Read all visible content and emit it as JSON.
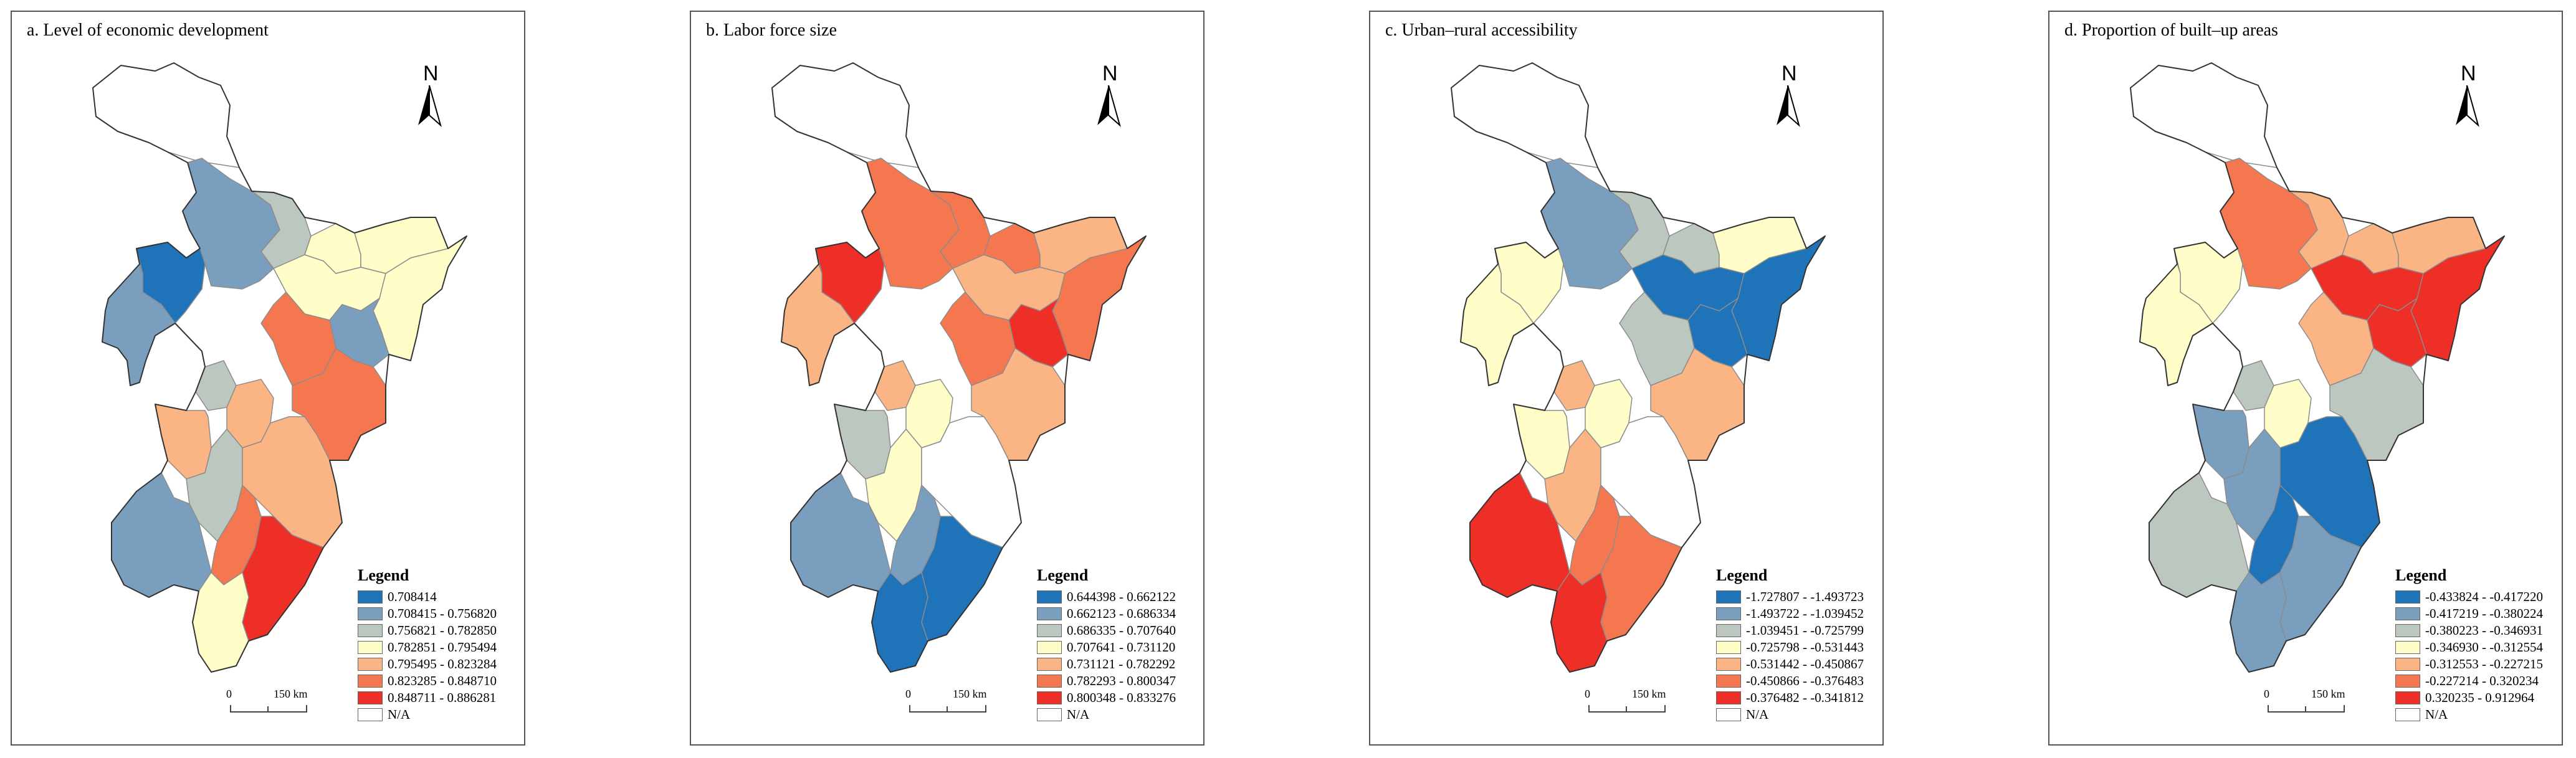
{
  "north_label": "N",
  "scale": {
    "zero": "0",
    "distance": "150 km"
  },
  "legend_title": "Legend",
  "na_label": "N/A",
  "colors": {
    "na": "#ffffff",
    "border_inner": "#8c8c8c",
    "border_outer": "#333333",
    "palette": [
      "#1f73b8",
      "#7a9ebe",
      "#bcc8bf",
      "#fffdc8",
      "#fbb584",
      "#f5774f",
      "#ee2f28"
    ]
  },
  "panels": [
    {
      "title": "a. Level of economic development",
      "classes": [
        "0.708414",
        "0.708415 - 0.756820",
        "0.756821 - 0.782850",
        "0.782851 - 0.795494",
        "0.795495 - 0.823284",
        "0.823285 - 0.848710",
        "0.848711 - 0.886281"
      ],
      "region_classes": [
        -1,
        1,
        0,
        1,
        2,
        3,
        3,
        1,
        3,
        3,
        5,
        2,
        4,
        5,
        4,
        2,
        4,
        5,
        6,
        1,
        3
      ]
    },
    {
      "title": "b. Labor force size",
      "classes": [
        "0.644398 - 0.662122",
        "0.662123 - 0.686334",
        "0.686335 - 0.707640",
        "0.707641 - 0.731120",
        "0.731121 - 0.782292",
        "0.782293 - 0.800347",
        "0.800348 - 0.833276"
      ],
      "region_classes": [
        -1,
        5,
        6,
        4,
        5,
        4,
        5,
        6,
        5,
        4,
        5,
        4,
        3,
        4,
        2,
        3,
        -1,
        1,
        0,
        1,
        0
      ]
    },
    {
      "title": "c. Urban–rural accessibility",
      "classes": [
        "-1.727807 - -1.493723",
        "-1.493722 - -1.039452",
        "-1.039451 - -0.725799",
        "-0.725798 - -0.531443",
        "-0.531442 - -0.450867",
        "-0.450866 - -0.376483",
        "-0.376482 - -0.341812"
      ],
      "region_classes": [
        -1,
        1,
        3,
        3,
        2,
        0,
        0,
        0,
        2,
        3,
        2,
        4,
        3,
        4,
        3,
        4,
        -1,
        5,
        5,
        6,
        6
      ]
    },
    {
      "title": "d. Proportion of built–up areas",
      "classes": [
        "-0.433824 - -0.417220",
        "-0.417219 - -0.380224",
        "-0.380223 - -0.346931",
        "-0.346930 - -0.312554",
        "-0.312553 - -0.227215",
        "-0.227214 - 0.320234",
        "0.320235 - 0.912964"
      ],
      "region_classes": [
        -1,
        5,
        3,
        3,
        4,
        6,
        6,
        6,
        4,
        4,
        4,
        2,
        3,
        2,
        1,
        1,
        0,
        0,
        1,
        2,
        1
      ]
    }
  ]
}
